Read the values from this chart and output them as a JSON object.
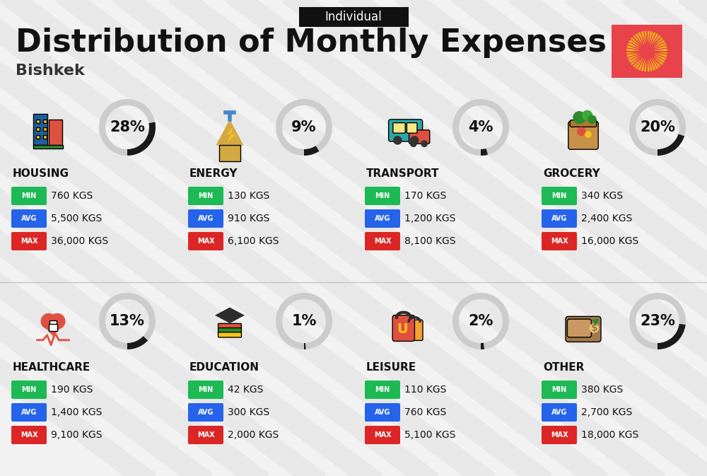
{
  "title": "Distribution of Monthly Expenses",
  "subtitle": "Individual",
  "city": "Bishkek",
  "bg_color": "#f2f2f2",
  "categories": [
    {
      "name": "HOUSING",
      "pct": 28,
      "min": "760 KGS",
      "avg": "5,500 KGS",
      "max": "36,000 KGS",
      "col": 0,
      "row": 0
    },
    {
      "name": "ENERGY",
      "pct": 9,
      "min": "130 KGS",
      "avg": "910 KGS",
      "max": "6,100 KGS",
      "col": 1,
      "row": 0
    },
    {
      "name": "TRANSPORT",
      "pct": 4,
      "min": "170 KGS",
      "avg": "1,200 KGS",
      "max": "8,100 KGS",
      "col": 2,
      "row": 0
    },
    {
      "name": "GROCERY",
      "pct": 20,
      "min": "340 KGS",
      "avg": "2,400 KGS",
      "max": "16,000 KGS",
      "col": 3,
      "row": 0
    },
    {
      "name": "HEALTHCARE",
      "pct": 13,
      "min": "190 KGS",
      "avg": "1,400 KGS",
      "max": "9,100 KGS",
      "col": 0,
      "row": 1
    },
    {
      "name": "EDUCATION",
      "pct": 1,
      "min": "42 KGS",
      "avg": "300 KGS",
      "max": "2,000 KGS",
      "col": 1,
      "row": 1
    },
    {
      "name": "LEISURE",
      "pct": 2,
      "min": "110 KGS",
      "avg": "760 KGS",
      "max": "5,100 KGS",
      "col": 2,
      "row": 1
    },
    {
      "name": "OTHER",
      "pct": 23,
      "min": "380 KGS",
      "avg": "2,700 KGS",
      "max": "18,000 KGS",
      "col": 3,
      "row": 1
    }
  ],
  "min_color": "#1db954",
  "avg_color": "#2563eb",
  "max_color": "#dc2626",
  "ring_dark": "#1a1a1a",
  "ring_light": "#cccccc",
  "flag_red": "#e8424a",
  "flag_yellow": "#f5c518",
  "stripe_color": "#e0e0e0",
  "divider_color": "#c8c8c8",
  "title_size": 32,
  "subtitle_size": 12,
  "city_size": 16,
  "cat_name_size": 11,
  "pct_size": 15,
  "badge_label_size": 7,
  "value_size": 10
}
